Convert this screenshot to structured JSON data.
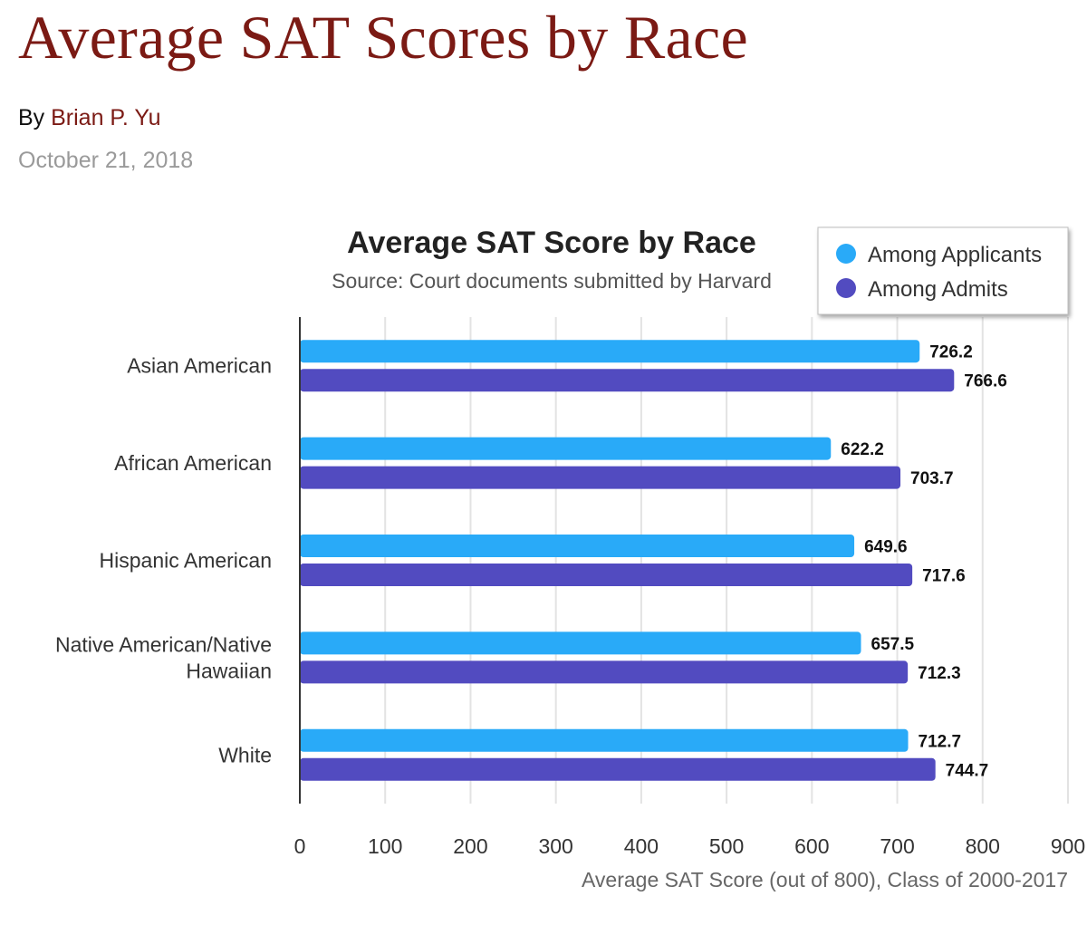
{
  "article": {
    "headline": "Average SAT Scores by Race",
    "byline_prefix": "By ",
    "author": "Brian P. Yu",
    "date": "October 21, 2018"
  },
  "colors": {
    "headline": "#7b1a14",
    "applicants": "#29aaf8",
    "admits": "#524bc0",
    "gridline": "#e3e3e3",
    "axis": "#333333"
  },
  "chart_data": {
    "type": "bar",
    "orientation": "horizontal",
    "title": "Average SAT Score by Race",
    "subtitle": "Source: Court documents submitted by Harvard",
    "xlabel": "Average SAT Score (out of 800), Class of 2000-2017",
    "ylabel": "",
    "xlim": [
      0,
      900
    ],
    "xticks": [
      0,
      100,
      200,
      300,
      400,
      500,
      600,
      700,
      800,
      900
    ],
    "grid": true,
    "legend_position": "top-right",
    "categories": [
      [
        "Asian American"
      ],
      [
        "African American"
      ],
      [
        "Hispanic American"
      ],
      [
        "Native American/Native",
        "Hawaiian"
      ],
      [
        "White"
      ]
    ],
    "series": [
      {
        "name": "Among Applicants",
        "color": "#29aaf8",
        "values": [
          726.2,
          622.2,
          649.6,
          657.5,
          712.7
        ]
      },
      {
        "name": "Among Admits",
        "color": "#524bc0",
        "values": [
          766.6,
          703.7,
          717.6,
          712.3,
          744.7
        ]
      }
    ]
  }
}
